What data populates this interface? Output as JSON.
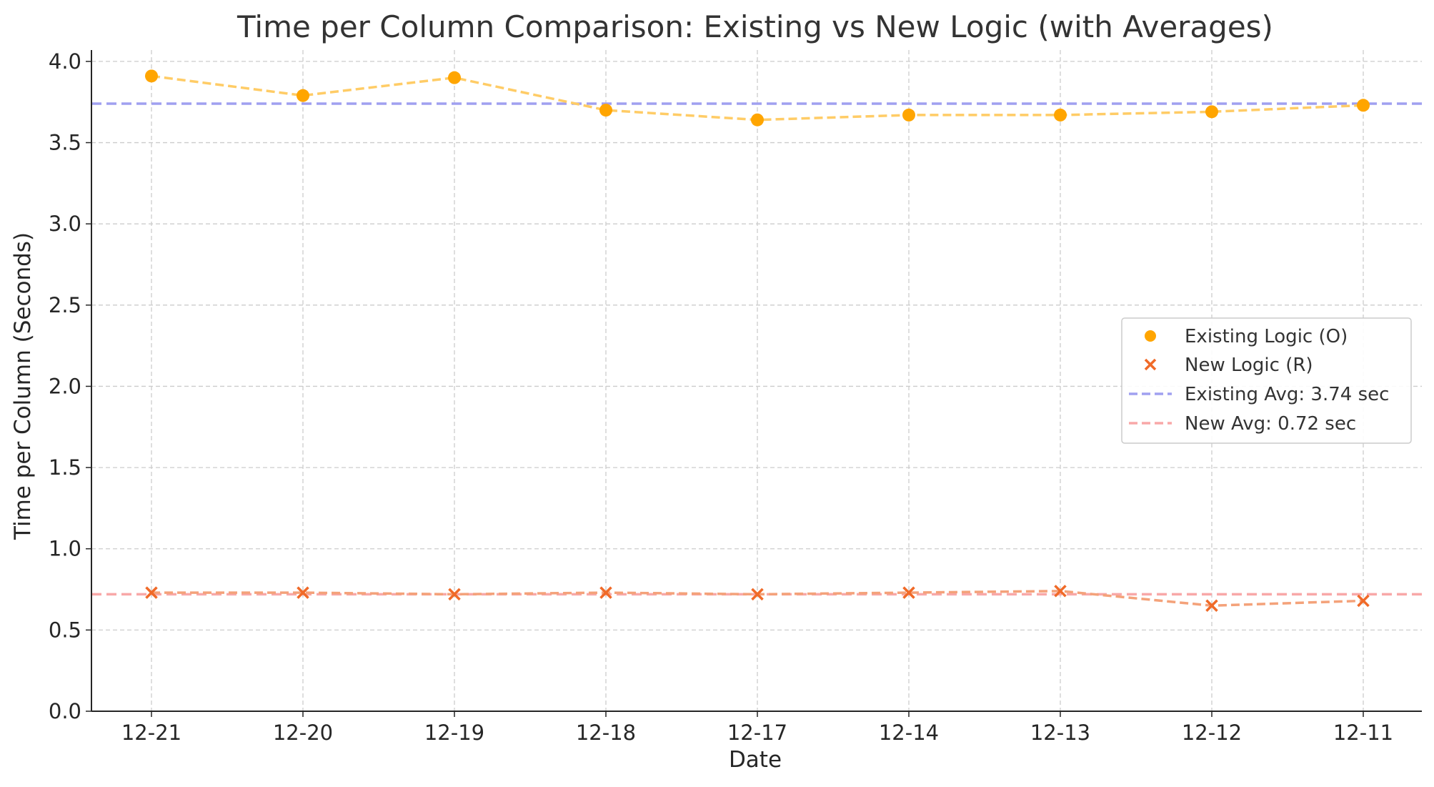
{
  "chart_data": {
    "type": "line",
    "title": "Time per Column Comparison: Existing vs New Logic (with Averages)",
    "xlabel": "Date",
    "ylabel": "Time per Column (Seconds)",
    "categories": [
      "12-21",
      "12-20",
      "12-19",
      "12-18",
      "12-17",
      "12-14",
      "12-13",
      "12-12",
      "12-11"
    ],
    "ylim": [
      0,
      4.07
    ],
    "yticks": [
      "0.0",
      "0.5",
      "1.0",
      "1.5",
      "2.0",
      "2.5",
      "3.0",
      "3.5",
      "4.0"
    ],
    "grid": true,
    "legend_position": "right",
    "series": [
      {
        "name": "Existing Logic (O)",
        "marker": "circle",
        "color": "#FFA500",
        "line_color": "#FFCC66",
        "values": [
          3.91,
          3.79,
          3.9,
          3.7,
          3.64,
          3.67,
          3.67,
          3.69,
          3.73
        ]
      },
      {
        "name": "New Logic (R)",
        "marker": "x",
        "color": "#F06A28",
        "line_color": "#F4A27A",
        "values": [
          0.73,
          0.73,
          0.72,
          0.73,
          0.72,
          0.73,
          0.74,
          0.65,
          0.68
        ]
      }
    ],
    "reference_lines": [
      {
        "name": "Existing Avg: 3.74 sec",
        "value": 3.74,
        "color": "#A0A0F0"
      },
      {
        "name": "New Avg: 0.72 sec",
        "value": 0.72,
        "color": "#F8A8A8"
      }
    ]
  }
}
